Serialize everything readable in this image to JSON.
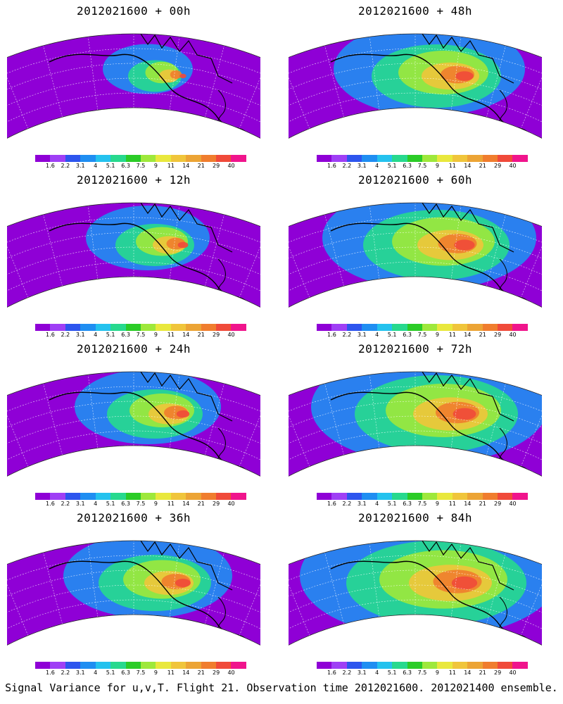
{
  "panels": [
    {
      "title": "2012021600 + 00h",
      "spread": 0.15
    },
    {
      "title": "2012021600 + 48h",
      "spread": 0.6
    },
    {
      "title": "2012021600 + 12h",
      "spread": 0.3
    },
    {
      "title": "2012021600 + 60h",
      "spread": 0.7
    },
    {
      "title": "2012021600 + 24h",
      "spread": 0.4
    },
    {
      "title": "2012021600 + 72h",
      "spread": 0.8
    },
    {
      "title": "2012021600 + 36h",
      "spread": 0.5
    },
    {
      "title": "2012021600 + 84h",
      "spread": 0.9
    }
  ],
  "colorbar": {
    "colors": [
      "#8f00d6",
      "#9f3ff5",
      "#2d55ee",
      "#1f8ef2",
      "#24c2ee",
      "#27d98e",
      "#2bcc27",
      "#9ee83b",
      "#e9e83d",
      "#f0c53b",
      "#eca435",
      "#f07d2e",
      "#f04a3a",
      "#f0148c"
    ],
    "labels": [
      "1.6",
      "2.2",
      "3.1",
      "4",
      "5.1",
      "6.3",
      "7.5",
      "9",
      "11",
      "14",
      "21",
      "29",
      "40"
    ]
  },
  "caption": "Signal Variance for u,v,T. Flight 21. Observation time 2012021600. 2012021400 ensemble."
}
